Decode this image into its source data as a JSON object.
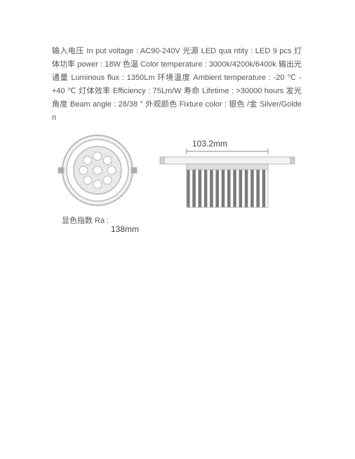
{
  "spec_text": "输入电压  In put voltage : AC90-240V 光源  LED qua ntity : LED 9 pcs 灯体功率 power : 18W 色温 Color temperature : 3000k/4200k/6400k 输出光通量 Luminous flux : 1350Lm 环境温度 Ambient temperature : -20 ℃ -+40 ℃ 灯体效率 Efficiency : 75Lm/W 寿命 Lifetime : >30000 hours 发光角度 Beam angle : 28/38 °   外观颜色 Fixture color : 银色  /金  Silver/Golde n",
  "ra_label": "显色指数 Ra :",
  "dim_138": "138mm",
  "dim_103": "103.2mm",
  "diagram": {
    "outer_circle_r": 50,
    "inner_circle_r": 34,
    "led_r": 6,
    "led_count": 9,
    "stroke": "#b9b9b9",
    "fill": "#e9e9e9",
    "fin_color": "#7a7a7a",
    "body_color": "#dedede",
    "trim_w": 180,
    "trim_h": 10,
    "body_w": 116,
    "body_h": 62,
    "fin_count": 14
  }
}
